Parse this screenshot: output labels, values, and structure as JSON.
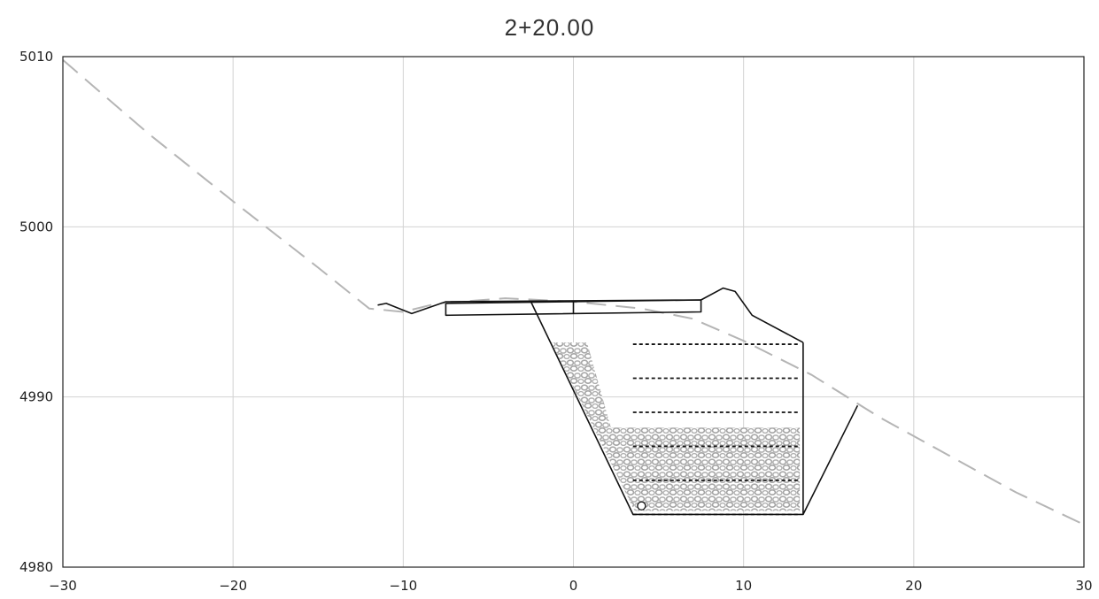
{
  "title": "2+20.00",
  "chart_data": {
    "type": "cross-section",
    "xlim": [
      -30,
      30
    ],
    "ylim": [
      4980,
      5010
    ],
    "x_ticks": [
      "−30",
      "−20",
      "−10",
      "0",
      "10",
      "20",
      "30"
    ],
    "x_tick_values": [
      -30,
      -20,
      -10,
      0,
      10,
      20,
      30
    ],
    "y_ticks": [
      "4980",
      "4990",
      "5000",
      "5010"
    ],
    "y_tick_values": [
      4980,
      4990,
      5000,
      5010
    ],
    "grid": true,
    "series": [
      {
        "kind": "existing-ground",
        "style": "dashed",
        "color": "#b5b5b5",
        "points": [
          [
            -30,
            5009.8
          ],
          [
            -25,
            5005.5
          ],
          [
            -20,
            5001.5
          ],
          [
            -15,
            4997.6
          ],
          [
            -12,
            4995.2
          ],
          [
            -10,
            4995.0
          ],
          [
            -8,
            4995.5
          ],
          [
            -4,
            4995.8
          ],
          [
            0,
            4995.6
          ],
          [
            4,
            4995.2
          ],
          [
            7,
            4994.6
          ],
          [
            10,
            4993.3
          ],
          [
            14,
            4991.3
          ],
          [
            18,
            4988.8
          ],
          [
            22,
            4986.6
          ],
          [
            26,
            4984.4
          ],
          [
            30,
            4982.5
          ]
        ]
      },
      {
        "kind": "proposed-surface",
        "style": "solid",
        "color": "#111111",
        "points": [
          [
            -11.5,
            4995.4
          ],
          [
            -11,
            4995.5
          ],
          [
            -9.5,
            4994.9
          ],
          [
            -7.5,
            4995.6
          ],
          [
            7.5,
            4995.7
          ],
          [
            8.8,
            4996.4
          ],
          [
            9.5,
            4996.2
          ],
          [
            10.5,
            4994.8
          ],
          [
            13.5,
            4993.2
          ]
        ]
      },
      {
        "kind": "slab",
        "style": "solid",
        "color": "#111111",
        "points": [
          [
            -7.5,
            4995.5
          ],
          [
            7.5,
            4995.7
          ],
          [
            7.5,
            4995.0
          ],
          [
            -7.5,
            4994.8
          ],
          [
            -7.5,
            4995.5
          ]
        ]
      },
      {
        "kind": "slab-divider",
        "style": "solid",
        "color": "#111111",
        "points": [
          [
            0,
            4995.6
          ],
          [
            0,
            4994.9
          ]
        ]
      },
      {
        "kind": "excavation-outline",
        "style": "solid",
        "color": "#111111",
        "points": [
          [
            -2.5,
            4995.6
          ],
          [
            3.5,
            4983.1
          ],
          [
            13.5,
            4983.1
          ],
          [
            13.5,
            4993.2
          ]
        ]
      },
      {
        "kind": "excavation-backslope",
        "style": "solid",
        "color": "#111111",
        "points": [
          [
            13.5,
            4983.1
          ],
          [
            16.7,
            4989.5
          ]
        ]
      }
    ],
    "gravel_region": [
      [
        -1.3,
        4993.2
      ],
      [
        0.8,
        4993.2
      ],
      [
        2.2,
        4988.2
      ],
      [
        13.3,
        4988.2
      ],
      [
        13.3,
        4983.3
      ],
      [
        3.6,
        4983.3
      ]
    ],
    "reinforcement_layers": {
      "x_range": [
        3.5,
        13.3
      ],
      "y_values": [
        4993.1,
        4991.1,
        4989.1,
        4987.1,
        4985.1,
        4983.1
      ]
    },
    "drain_pipe": {
      "x": 4.0,
      "y": 4983.6
    }
  }
}
